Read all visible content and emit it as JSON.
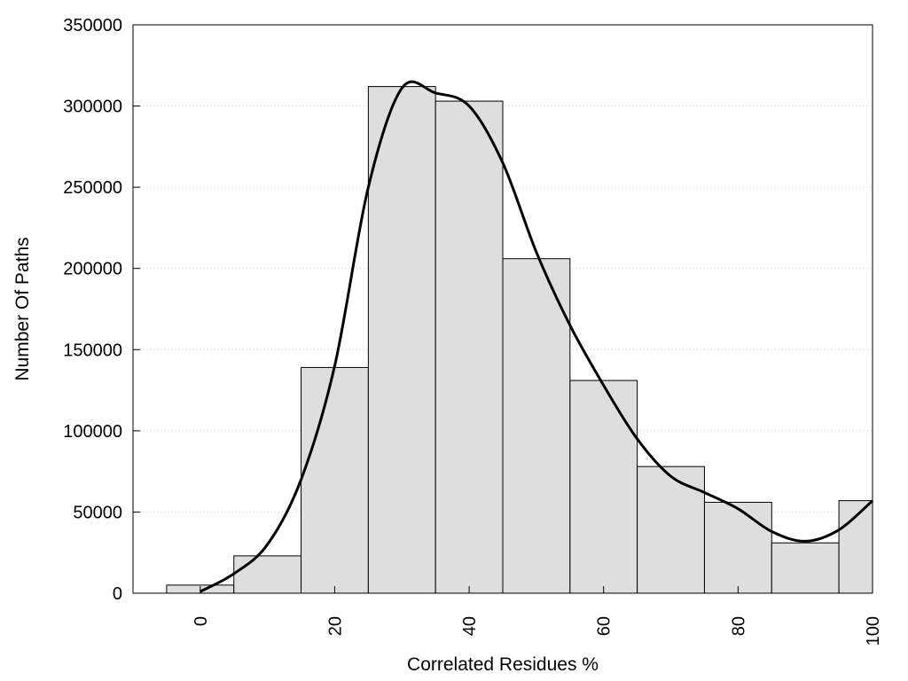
{
  "chart_data": {
    "type": "bar",
    "xlabel": "Correlated Residues %",
    "ylabel": "Number Of Paths",
    "xlim": [
      -10,
      100
    ],
    "ylim": [
      0,
      350000
    ],
    "grid": "horizontal-dotted",
    "bin_width": 10,
    "x_ticks": [
      "0",
      "20",
      "40",
      "60",
      "80",
      "100"
    ],
    "y_ticks": [
      "0",
      "50000",
      "100000",
      "150000",
      "200000",
      "250000",
      "300000",
      "350000"
    ],
    "bins": [
      {
        "center": 0,
        "value": 5000
      },
      {
        "center": 10,
        "value": 23000
      },
      {
        "center": 20,
        "value": 139000
      },
      {
        "center": 30,
        "value": 312000
      },
      {
        "center": 40,
        "value": 303000
      },
      {
        "center": 50,
        "value": 206000
      },
      {
        "center": 60,
        "value": 131000
      },
      {
        "center": 70,
        "value": 78000
      },
      {
        "center": 80,
        "value": 56000
      },
      {
        "center": 90,
        "value": 31000
      },
      {
        "center": 100,
        "value": 57000
      }
    ],
    "curve": {
      "x": [
        0,
        5,
        10,
        15,
        20,
        25,
        30,
        35,
        40,
        45,
        50,
        55,
        60,
        65,
        70,
        75,
        80,
        85,
        90,
        95,
        100
      ],
      "y": [
        1000,
        12000,
        30000,
        70000,
        140000,
        250000,
        311000,
        308000,
        300000,
        265000,
        210000,
        165000,
        128000,
        95000,
        72000,
        62000,
        52000,
        38000,
        32000,
        39000,
        57000
      ]
    },
    "bar_fill": "#dedede",
    "bar_stroke": "#000000",
    "curve_color": "#000000"
  }
}
